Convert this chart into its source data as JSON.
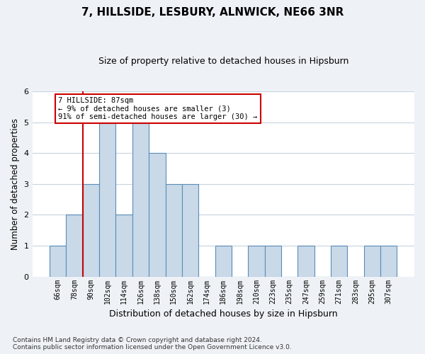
{
  "title1": "7, HILLSIDE, LESBURY, ALNWICK, NE66 3NR",
  "title2": "Size of property relative to detached houses in Hipsburn",
  "xlabel": "Distribution of detached houses by size in Hipsburn",
  "ylabel": "Number of detached properties",
  "categories": [
    "66sqm",
    "78sqm",
    "90sqm",
    "102sqm",
    "114sqm",
    "126sqm",
    "138sqm",
    "150sqm",
    "162sqm",
    "174sqm",
    "186sqm",
    "198sqm",
    "210sqm",
    "223sqm",
    "235sqm",
    "247sqm",
    "259sqm",
    "271sqm",
    "283sqm",
    "295sqm",
    "307sqm"
  ],
  "values": [
    1,
    2,
    3,
    5,
    2,
    5,
    4,
    3,
    3,
    0,
    1,
    0,
    1,
    1,
    0,
    1,
    0,
    1,
    0,
    1,
    1
  ],
  "bar_color": "#c9d9e8",
  "bar_edge_color": "#5b8db8",
  "grid_color": "#c8d4de",
  "annotation_line_color": "#cc0000",
  "annotation_box_text": "7 HILLSIDE: 87sqm\n← 9% of detached houses are smaller (3)\n91% of semi-detached houses are larger (30) →",
  "annotation_box_color": "#cc0000",
  "ylim": [
    0,
    6
  ],
  "yticks": [
    0,
    1,
    2,
    3,
    4,
    5,
    6
  ],
  "footnote": "Contains HM Land Registry data © Crown copyright and database right 2024.\nContains public sector information licensed under the Open Government Licence v3.0.",
  "background_color": "#eef2f6",
  "plot_bg_color": "#ffffff"
}
